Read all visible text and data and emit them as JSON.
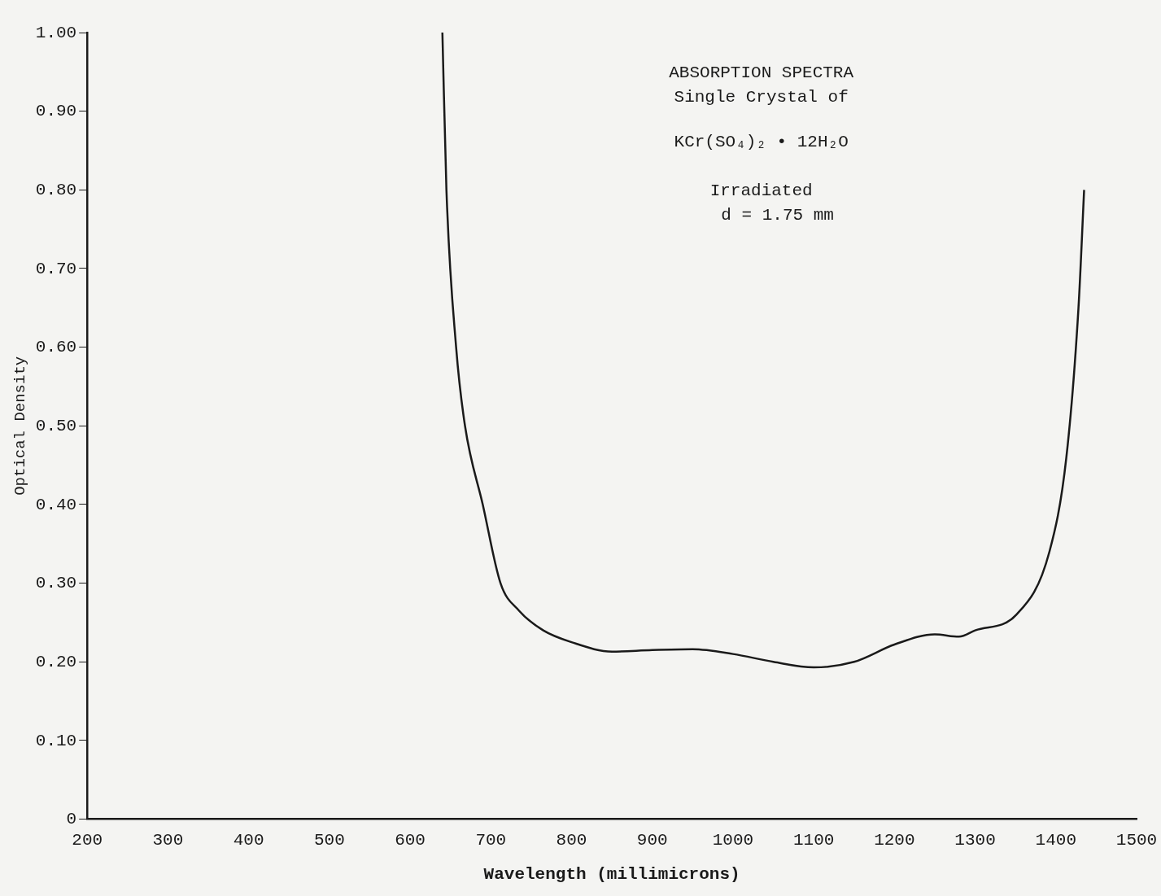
{
  "chart_data": {
    "type": "line",
    "title": "ABSORPTION SPECTRA",
    "subtitle": "Single Crystal of",
    "annotations": [
      "KCr(SO₄)₂ • 12H₂O",
      "Irradiated",
      "d = 1.75 mm"
    ],
    "xlabel": "Wavelength (millimicrons)",
    "ylabel": "Optical Density",
    "x": [
      640,
      645,
      657,
      668,
      690,
      712,
      735,
      765,
      800,
      850,
      900,
      950,
      1000,
      1050,
      1100,
      1150,
      1200,
      1250,
      1280,
      1300,
      1351,
      1392,
      1413,
      1428,
      1435
    ],
    "series": [
      {
        "color": "#1a1a1a",
        "values": [
          1.0,
          0.8,
          0.6,
          0.5,
          0.4,
          0.3,
          0.265,
          0.24,
          0.225,
          0.213,
          0.215,
          0.216,
          0.21,
          0.2,
          0.193,
          0.2,
          0.222,
          0.235,
          0.232,
          0.24,
          0.26,
          0.34,
          0.46,
          0.65,
          0.8
        ]
      }
    ],
    "xlim": [
      200,
      1500
    ],
    "xticks": [
      200,
      300,
      400,
      500,
      600,
      700,
      800,
      900,
      1000,
      1100,
      1200,
      1300,
      1400,
      1500
    ],
    "ylim": [
      0,
      1.0
    ],
    "yticks": [
      0,
      {
        "value": 0.1,
        "label": "0.10"
      },
      {
        "value": 0.2,
        "label": "0.20"
      },
      {
        "value": 0.3,
        "label": "0.30"
      },
      {
        "value": 0.4,
        "label": "0.40"
      },
      {
        "value": 0.5,
        "label": "0.50"
      },
      {
        "value": 0.6,
        "label": "0.60"
      },
      {
        "value": 0.7,
        "label": "0.70"
      },
      {
        "value": 0.8,
        "label": "0.80"
      },
      {
        "value": 0.9,
        "label": "0.90"
      },
      {
        "value": 1.0,
        "label": "1.00"
      }
    ],
    "grid": false,
    "legend": false,
    "marker": "none",
    "line_style": "solid"
  }
}
